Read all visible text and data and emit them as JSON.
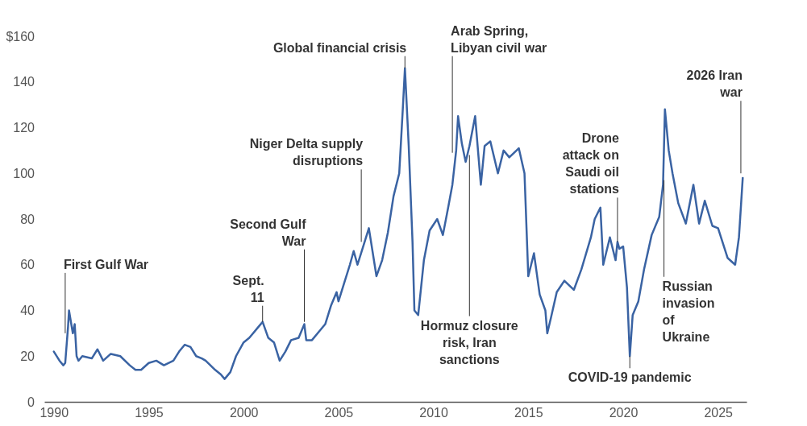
{
  "chart_data": {
    "type": "line",
    "x": [
      1990.0,
      1990.3,
      1990.5,
      1990.6,
      1990.75,
      1990.8,
      1991.0,
      1991.1,
      1991.2,
      1991.3,
      1991.5,
      1992.0,
      1992.3,
      1992.6,
      1993.0,
      1993.5,
      1994.0,
      1994.3,
      1994.6,
      1995.0,
      1995.4,
      1995.8,
      1996.3,
      1996.6,
      1996.9,
      1997.2,
      1997.5,
      1997.8,
      1998.0,
      1998.5,
      1998.8,
      1999.0,
      1999.3,
      1999.6,
      2000.0,
      2000.3,
      2000.8,
      2001.0,
      2001.3,
      2001.6,
      2001.9,
      2002.2,
      2002.5,
      2002.9,
      2003.2,
      2003.3,
      2003.6,
      2004.0,
      2004.3,
      2004.6,
      2004.9,
      2005.0,
      2005.3,
      2005.6,
      2005.8,
      2006.0,
      2006.3,
      2006.6,
      2007.0,
      2007.3,
      2007.6,
      2007.9,
      2008.2,
      2008.4,
      2008.5,
      2008.7,
      2008.9,
      2009.0,
      2009.2,
      2009.5,
      2009.8,
      2010.2,
      2010.5,
      2010.8,
      2011.0,
      2011.2,
      2011.3,
      2011.5,
      2011.7,
      2011.9,
      2012.2,
      2012.5,
      2012.7,
      2013.0,
      2013.4,
      2013.7,
      2014.0,
      2014.5,
      2014.8,
      2015.0,
      2015.3,
      2015.6,
      2015.9,
      2016.0,
      2016.2,
      2016.5,
      2016.9,
      2017.4,
      2017.8,
      2018.3,
      2018.5,
      2018.8,
      2018.95,
      2019.3,
      2019.6,
      2019.7,
      2019.8,
      2020.0,
      2020.2,
      2020.35,
      2020.5,
      2020.8,
      2021.1,
      2021.5,
      2021.9,
      2022.1,
      2022.2,
      2022.4,
      2022.6,
      2022.9,
      2023.3,
      2023.7,
      2024.0,
      2024.3,
      2024.7,
      2025.0,
      2025.5,
      2025.9,
      2026.1,
      2026.3
    ],
    "series": [
      {
        "color": "#3a63a3",
        "values": [
          22,
          18,
          16,
          17,
          33,
          40,
          30,
          34,
          20,
          18,
          20,
          19,
          23,
          18,
          21,
          20,
          16,
          14,
          14,
          17,
          18,
          16,
          18,
          22,
          25,
          24,
          20,
          19,
          18,
          14,
          12,
          10,
          13,
          20,
          26,
          28,
          33,
          35,
          28,
          26,
          18,
          22,
          27,
          28,
          34,
          27,
          27,
          31,
          34,
          42,
          48,
          44,
          52,
          60,
          66,
          60,
          68,
          76,
          55,
          62,
          74,
          90,
          100,
          130,
          146,
          112,
          70,
          40,
          38,
          62,
          75,
          80,
          73,
          86,
          95,
          110,
          125,
          113,
          105,
          112,
          125,
          95,
          112,
          114,
          100,
          110,
          107,
          111,
          100,
          55,
          65,
          47,
          40,
          30,
          37,
          48,
          53,
          49,
          58,
          72,
          80,
          85,
          60,
          72,
          62,
          70,
          67,
          68,
          50,
          20,
          38,
          44,
          58,
          73,
          81,
          95,
          128,
          110,
          100,
          87,
          78,
          95,
          78,
          88,
          77,
          76,
          63,
          60,
          72,
          98
        ]
      }
    ],
    "xlim": [
      1989.5,
      2026.5
    ],
    "xticks": [
      1990,
      1995,
      2000,
      2005,
      2010,
      2015,
      2020,
      2025
    ],
    "ylim": [
      0,
      160
    ],
    "yticks": [
      0,
      20,
      40,
      60,
      80,
      100,
      120,
      140,
      {
        "value": 160,
        "label": "$160"
      }
    ],
    "grid": false,
    "annotations": [
      {
        "text": "First Gulf War",
        "x": 1990.6,
        "y": 30
      },
      {
        "text": "Sept. 11",
        "x": 2001.0,
        "y": 35
      },
      {
        "text": "Second Gulf War",
        "x": 2003.2,
        "y": 35
      },
      {
        "text": "Niger Delta supply disruptions",
        "x": 2006.2,
        "y": 70
      },
      {
        "text": "Global financial crisis",
        "x": 2008.5,
        "y": 146
      },
      {
        "text": "Arab Spring, Libyan civil war",
        "x": 2011.0,
        "y": 109
      },
      {
        "text": "Hormuz closure risk, Iran sanctions",
        "x": 2011.9,
        "y": 108
      },
      {
        "text": "Drone attack on Saudi oil stations",
        "x": 2019.7,
        "y": 70
      },
      {
        "text": "COVID-19 pandemic",
        "x": 2020.35,
        "y": 20
      },
      {
        "text": "Russian invasion of Ukraine",
        "x": 2022.15,
        "y": 97
      },
      {
        "text": "2026 Iran war",
        "x": 2026.2,
        "y": 100
      }
    ]
  }
}
